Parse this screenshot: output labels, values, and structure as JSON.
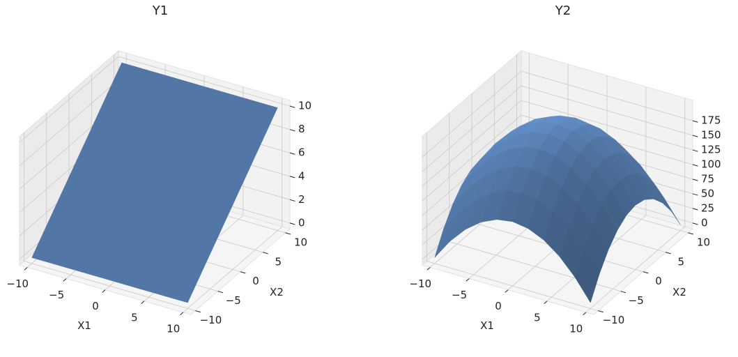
{
  "chart_data": [
    {
      "type": "surface",
      "title": "Y1",
      "xlabel": "X1",
      "ylabel": "X2",
      "color": "#5b84b8",
      "grid": true,
      "x": [
        -10,
        -8,
        -6,
        -4,
        -2,
        0,
        2,
        4,
        6,
        8,
        10
      ],
      "y": [
        -10,
        -8,
        -6,
        -4,
        -2,
        0,
        2,
        4,
        6,
        8,
        10
      ],
      "z": [
        [
          0,
          0,
          0,
          0,
          0,
          0,
          0,
          0,
          0,
          0,
          0
        ],
        [
          1,
          1,
          1,
          1,
          1,
          1,
          1,
          1,
          1,
          1,
          1
        ],
        [
          2,
          2,
          2,
          2,
          2,
          2,
          2,
          2,
          2,
          2,
          2
        ],
        [
          3,
          3,
          3,
          3,
          3,
          3,
          3,
          3,
          3,
          3,
          3
        ],
        [
          4,
          4,
          4,
          4,
          4,
          4,
          4,
          4,
          4,
          4,
          4
        ],
        [
          5,
          5,
          5,
          5,
          5,
          5,
          5,
          5,
          5,
          5,
          5
        ],
        [
          6,
          6,
          6,
          6,
          6,
          6,
          6,
          6,
          6,
          6,
          6
        ],
        [
          7,
          7,
          7,
          7,
          7,
          7,
          7,
          7,
          7,
          7,
          7
        ],
        [
          8,
          8,
          8,
          8,
          8,
          8,
          8,
          8,
          8,
          8,
          8
        ],
        [
          9,
          9,
          9,
          9,
          9,
          9,
          9,
          9,
          9,
          9,
          9
        ],
        [
          10,
          10,
          10,
          10,
          10,
          10,
          10,
          10,
          10,
          10,
          10
        ]
      ],
      "xlim": [
        -11,
        11
      ],
      "ylim": [
        -11,
        11
      ],
      "zlim": [
        -0.5,
        10.5
      ],
      "xticks": [
        {
          "value": -10,
          "label": "−10"
        },
        {
          "value": -5,
          "label": "−5"
        },
        0,
        5,
        10
      ],
      "yticks": [
        {
          "value": -10,
          "label": "−10"
        },
        {
          "value": -5,
          "label": "−5"
        },
        0,
        5,
        10
      ],
      "zticks": [
        0,
        2,
        4,
        6,
        8,
        10
      ]
    },
    {
      "type": "surface",
      "title": "Y2",
      "xlabel": "X1",
      "ylabel": "X2",
      "color": "#5b84b8",
      "grid": true,
      "x": [
        -10,
        -8,
        -6,
        -4,
        -2,
        0,
        2,
        4,
        6,
        8,
        10
      ],
      "y": [
        -10,
        -8,
        -6,
        -4,
        -2,
        0,
        2,
        4,
        6,
        8,
        10
      ],
      "z": [
        [
          0,
          36,
          64,
          84,
          96,
          100,
          96,
          84,
          64,
          36,
          0
        ],
        [
          36,
          72,
          100,
          120,
          132,
          136,
          132,
          120,
          100,
          72,
          36
        ],
        [
          64,
          100,
          128,
          148,
          160,
          164,
          160,
          148,
          128,
          100,
          64
        ],
        [
          84,
          120,
          148,
          168,
          180,
          184,
          180,
          168,
          148,
          120,
          84
        ],
        [
          96,
          132,
          160,
          180,
          192,
          196,
          192,
          180,
          160,
          132,
          96
        ],
        [
          100,
          136,
          164,
          184,
          196,
          200,
          196,
          184,
          164,
          136,
          100
        ],
        [
          96,
          132,
          160,
          180,
          192,
          196,
          192,
          180,
          160,
          132,
          96
        ],
        [
          84,
          120,
          148,
          168,
          180,
          184,
          180,
          168,
          148,
          120,
          84
        ],
        [
          64,
          100,
          128,
          148,
          160,
          164,
          160,
          148,
          128,
          100,
          64
        ],
        [
          36,
          72,
          100,
          120,
          132,
          136,
          132,
          120,
          100,
          72,
          36
        ],
        [
          0,
          36,
          64,
          84,
          96,
          100,
          96,
          84,
          64,
          36,
          0
        ]
      ],
      "xlim": [
        -11,
        11
      ],
      "ylim": [
        -11,
        11
      ],
      "zlim": [
        -10,
        210
      ],
      "xticks": [
        {
          "value": -10,
          "label": "−10"
        },
        {
          "value": -5,
          "label": "−5"
        },
        0,
        5,
        10
      ],
      "yticks": [
        {
          "value": -10,
          "label": "−10"
        },
        {
          "value": -5,
          "label": "−5"
        },
        0,
        5,
        10
      ],
      "zticks": [
        0,
        25,
        50,
        75,
        100,
        125,
        150,
        175
      ]
    }
  ]
}
